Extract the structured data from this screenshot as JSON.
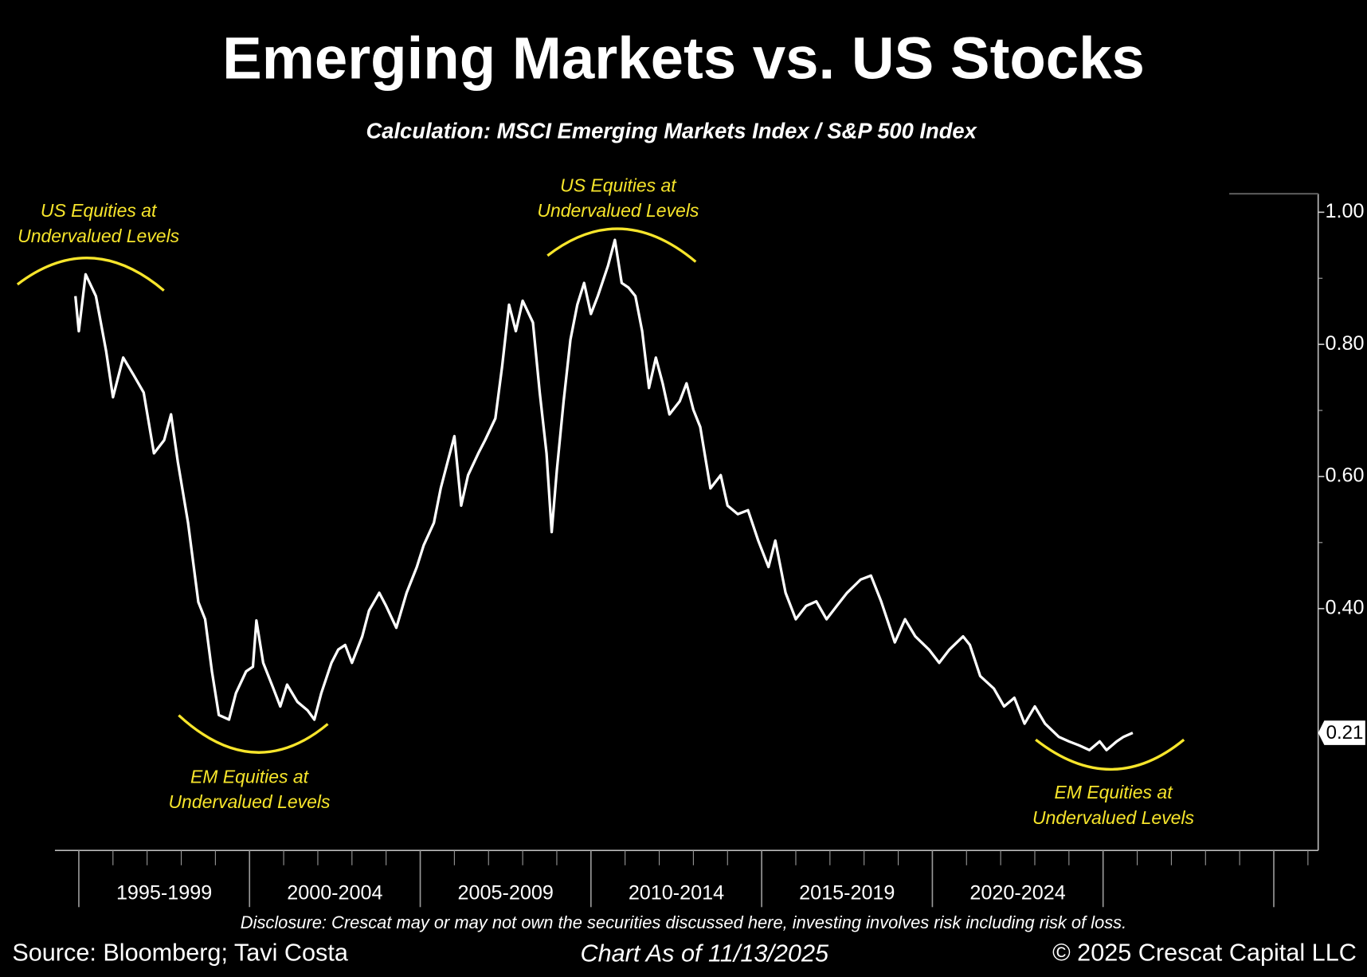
{
  "chart_data": {
    "type": "line",
    "title": "Emerging Markets vs. US Stocks",
    "subtitle": "Calculation: MSCI Emerging Markets Index / S&P 500 Index",
    "annotations": [
      {
        "lines": [
          "US Equities at",
          "Undervalued Levels"
        ]
      },
      {
        "lines": [
          "US Equities at",
          "Undervalued Levels"
        ]
      },
      {
        "lines": [
          "EM Equities at",
          "Undervalued Levels"
        ]
      },
      {
        "lines": [
          "EM Equities at",
          "Undervalued Levels"
        ]
      }
    ],
    "footnote": "Disclosure: Crescat may or may not own the securities discussed here, investing involves risk including risk of loss.",
    "source": "Source: Bloomberg; Tavi Costa",
    "date_note": "Chart As of 11/13/2025",
    "copyright": "© 2025 Crescat Capital LLC",
    "color": "#ffffff",
    "xlim": [
      1994.3,
      2031.3
    ],
    "xticks": [
      {
        "value": 1997.5,
        "label": "1995-1999"
      },
      {
        "value": 2002.5,
        "label": "2000-2004"
      },
      {
        "value": 2007.5,
        "label": "2005-2009"
      },
      {
        "value": 2012.5,
        "label": "2010-2014"
      },
      {
        "value": 2017.5,
        "label": "2015-2019"
      },
      {
        "value": 2022.5,
        "label": "2020-2024"
      }
    ],
    "ylim": [
      0.034,
      1.028
    ],
    "yticks": [
      {
        "value": 1.0,
        "label": "1.00"
      },
      {
        "value": 0.8,
        "label": "0.80"
      },
      {
        "value": 0.6,
        "label": "0.60"
      },
      {
        "value": 0.4,
        "label": "0.40"
      }
    ],
    "x": [
      1994.9,
      1995.0,
      1995.2,
      1995.5,
      1995.8,
      1996.0,
      1996.3,
      1996.6,
      1996.9,
      1997.2,
      1997.5,
      1997.7,
      1997.9,
      1998.2,
      1998.5,
      1998.7,
      1998.9,
      1999.1,
      1999.4,
      1999.6,
      1999.9,
      2000.1,
      2000.2,
      2000.4,
      2000.7,
      2000.9,
      2001.1,
      2001.4,
      2001.7,
      2001.9,
      2002.1,
      2002.4,
      2002.6,
      2002.8,
      2003.0,
      2003.3,
      2003.5,
      2003.8,
      2004.0,
      2004.3,
      2004.6,
      2004.9,
      2005.1,
      2005.4,
      2005.6,
      2005.8,
      2006.0,
      2006.2,
      2006.4,
      2006.7,
      2006.9,
      2007.2,
      2007.4,
      2007.6,
      2007.8,
      2008.0,
      2008.3,
      2008.5,
      2008.7,
      2008.85,
      2009.0,
      2009.2,
      2009.4,
      2009.6,
      2009.8,
      2010.0,
      2010.2,
      2010.5,
      2010.7,
      2010.9,
      2011.1,
      2011.3,
      2011.5,
      2011.7,
      2011.9,
      2012.1,
      2012.3,
      2012.6,
      2012.8,
      2013.0,
      2013.2,
      2013.5,
      2013.8,
      2014.0,
      2014.3,
      2014.6,
      2014.9,
      2015.2,
      2015.4,
      2015.7,
      2016.0,
      2016.3,
      2016.6,
      2016.9,
      2017.2,
      2017.5,
      2017.9,
      2018.2,
      2018.5,
      2018.9,
      2019.2,
      2019.5,
      2019.9,
      2020.2,
      2020.5,
      2020.9,
      2021.1,
      2021.4,
      2021.8,
      2022.1,
      2022.4,
      2022.7,
      2023.0,
      2023.3,
      2023.7,
      2024.0,
      2024.3,
      2024.6,
      2024.9,
      2025.1,
      2025.4,
      2025.6,
      2025.87
    ],
    "values": [
      0.873,
      0.82,
      0.906,
      0.873,
      0.79,
      0.72,
      0.78,
      0.754,
      0.727,
      0.635,
      0.655,
      0.694,
      0.622,
      0.53,
      0.41,
      0.384,
      0.305,
      0.239,
      0.232,
      0.272,
      0.305,
      0.312,
      0.382,
      0.318,
      0.279,
      0.252,
      0.285,
      0.259,
      0.246,
      0.232,
      0.272,
      0.318,
      0.338,
      0.345,
      0.318,
      0.358,
      0.397,
      0.424,
      0.404,
      0.371,
      0.424,
      0.463,
      0.496,
      0.53,
      0.582,
      0.622,
      0.661,
      0.556,
      0.602,
      0.635,
      0.655,
      0.688,
      0.767,
      0.86,
      0.82,
      0.866,
      0.833,
      0.727,
      0.635,
      0.516,
      0.609,
      0.714,
      0.807,
      0.86,
      0.893,
      0.846,
      0.873,
      0.919,
      0.958,
      0.893,
      0.886,
      0.873,
      0.82,
      0.734,
      0.78,
      0.741,
      0.694,
      0.714,
      0.741,
      0.701,
      0.675,
      0.582,
      0.602,
      0.556,
      0.543,
      0.549,
      0.503,
      0.463,
      0.503,
      0.424,
      0.384,
      0.404,
      0.411,
      0.384,
      0.404,
      0.424,
      0.444,
      0.45,
      0.411,
      0.349,
      0.384,
      0.358,
      0.338,
      0.318,
      0.338,
      0.358,
      0.345,
      0.298,
      0.279,
      0.252,
      0.265,
      0.226,
      0.252,
      0.226,
      0.206,
      0.199,
      0.193,
      0.186,
      0.199,
      0.186,
      0.199,
      0.206,
      0.212
    ],
    "value_labels": [
      null,
      null,
      null,
      null,
      null,
      null,
      null,
      null,
      null,
      null,
      null,
      null,
      null,
      null,
      null,
      null,
      null,
      null,
      null,
      null,
      null,
      null,
      null,
      null,
      null,
      null,
      null,
      null,
      null,
      null,
      null,
      null,
      null,
      null,
      null,
      null,
      null,
      null,
      null,
      null,
      null,
      null,
      null,
      null,
      null,
      null,
      null,
      null,
      null,
      null,
      null,
      null,
      null,
      null,
      null,
      null,
      null,
      null,
      null,
      null,
      null,
      null,
      null,
      null,
      null,
      null,
      null,
      null,
      null,
      null,
      null,
      null,
      null,
      null,
      null,
      null,
      null,
      null,
      null,
      null,
      null,
      null,
      null,
      null,
      null,
      null,
      null,
      null,
      null,
      null,
      null,
      null,
      null,
      null,
      null,
      null,
      null,
      null,
      null,
      null,
      null,
      null,
      null,
      null,
      null,
      null,
      null,
      null,
      null,
      null,
      null,
      null,
      null,
      null,
      null,
      null,
      null,
      null,
      null,
      null,
      null,
      null,
      "0.21"
    ]
  }
}
